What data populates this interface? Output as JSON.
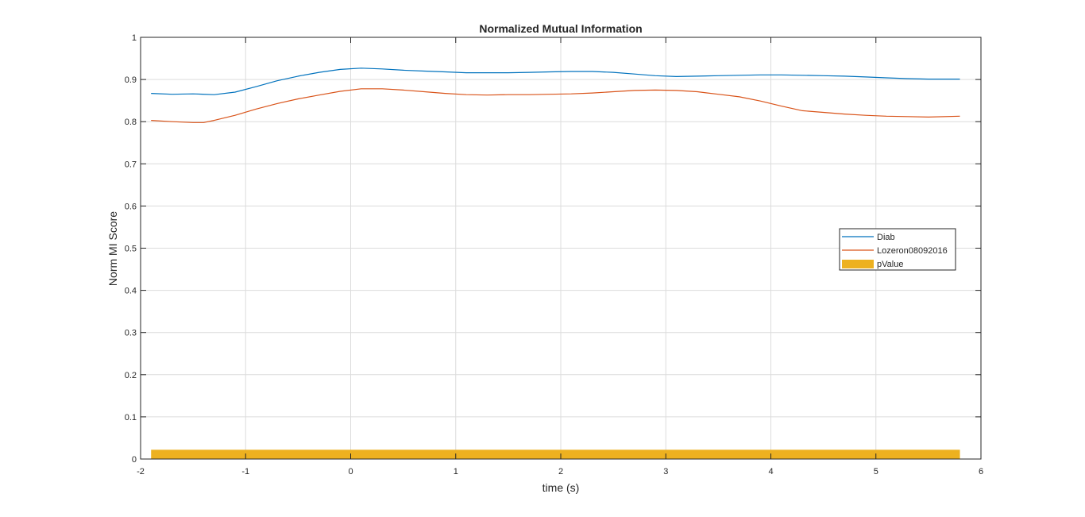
{
  "chart_data": {
    "type": "line",
    "title": "Normalized Mutual Information",
    "xlabel": "time (s)",
    "ylabel": "Norm MI Score",
    "xlim": [
      -2,
      6
    ],
    "ylim": [
      0,
      1
    ],
    "xticks": [
      -2,
      -1,
      0,
      1,
      2,
      3,
      4,
      5,
      6
    ],
    "xtick_labels": [
      "-2",
      "-1",
      "0",
      "1",
      "2",
      "3",
      "4",
      "5",
      "6"
    ],
    "yticks": [
      0,
      0.1,
      0.2,
      0.3,
      0.4,
      0.5,
      0.6,
      0.7,
      0.8,
      0.9,
      1
    ],
    "ytick_labels": [
      "0",
      "0.1",
      "0.2",
      "0.3",
      "0.4",
      "0.5",
      "0.6",
      "0.7",
      "0.8",
      "0.9",
      "1"
    ],
    "grid": true,
    "legend_position": "right",
    "series": [
      {
        "name": "Diab",
        "color": "#0072BD",
        "x": [
          -1.9,
          -1.7,
          -1.5,
          -1.3,
          -1.1,
          -0.9,
          -0.7,
          -0.5,
          -0.3,
          -0.1,
          0.1,
          0.3,
          0.5,
          0.7,
          0.9,
          1.1,
          1.3,
          1.5,
          1.7,
          1.9,
          2.1,
          2.3,
          2.5,
          2.7,
          2.9,
          3.1,
          3.3,
          3.5,
          3.7,
          3.9,
          4.1,
          4.3,
          4.5,
          4.7,
          4.9,
          5.1,
          5.3,
          5.5,
          5.8
        ],
        "values": [
          0.867,
          0.865,
          0.866,
          0.864,
          0.87,
          0.883,
          0.897,
          0.908,
          0.917,
          0.924,
          0.927,
          0.925,
          0.922,
          0.92,
          0.918,
          0.916,
          0.916,
          0.916,
          0.917,
          0.918,
          0.919,
          0.919,
          0.917,
          0.913,
          0.909,
          0.907,
          0.908,
          0.909,
          0.91,
          0.911,
          0.911,
          0.91,
          0.909,
          0.908,
          0.906,
          0.904,
          0.902,
          0.901,
          0.901
        ]
      },
      {
        "name": "Lozeron08092016",
        "color": "#D95319",
        "x": [
          -1.9,
          -1.7,
          -1.5,
          -1.4,
          -1.3,
          -1.1,
          -0.9,
          -0.7,
          -0.5,
          -0.3,
          -0.1,
          0.1,
          0.3,
          0.5,
          0.7,
          0.9,
          1.1,
          1.3,
          1.5,
          1.7,
          1.9,
          2.1,
          2.3,
          2.5,
          2.7,
          2.9,
          3.1,
          3.3,
          3.5,
          3.7,
          3.9,
          4.1,
          4.3,
          4.5,
          4.7,
          4.9,
          5.1,
          5.3,
          5.5,
          5.8
        ],
        "values": [
          0.803,
          0.8,
          0.798,
          0.798,
          0.803,
          0.815,
          0.83,
          0.843,
          0.854,
          0.863,
          0.872,
          0.878,
          0.878,
          0.875,
          0.871,
          0.867,
          0.864,
          0.863,
          0.864,
          0.864,
          0.865,
          0.866,
          0.868,
          0.871,
          0.874,
          0.875,
          0.874,
          0.871,
          0.865,
          0.859,
          0.849,
          0.837,
          0.826,
          0.822,
          0.818,
          0.815,
          0.813,
          0.812,
          0.811,
          0.813
        ]
      }
    ],
    "bars": [
      {
        "name": "pValue",
        "color": "#EDB120",
        "x_start": -1.9,
        "x_end": 5.8,
        "value": 0.02
      }
    ]
  }
}
